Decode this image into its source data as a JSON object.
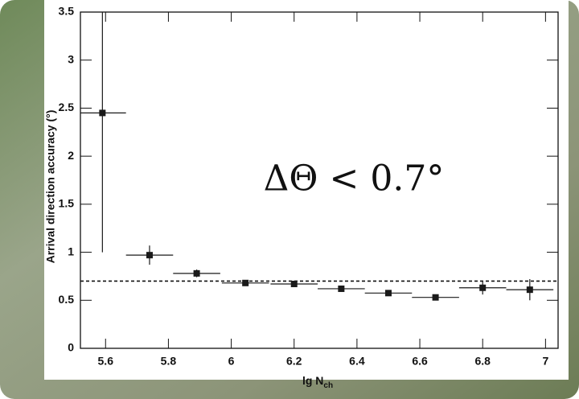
{
  "chart_data": {
    "type": "scatter",
    "x_label": "lg N",
    "x_label_sub": "ch",
    "y_label": "Arrival direction accuracy (°)",
    "annotation": "ΔΘ < 0.7°",
    "reference_line": 0.7,
    "xlim": [
      5.52,
      7.04
    ],
    "ylim": [
      0,
      3.5
    ],
    "xticks": [
      5.6,
      5.8,
      6,
      6.2,
      6.4,
      6.6,
      6.8,
      7
    ],
    "yticks": [
      0,
      0.5,
      1,
      1.5,
      2,
      2.5,
      3,
      3.5
    ],
    "series": [
      {
        "color": "#1a1a1a",
        "x": [
          5.59,
          5.74,
          5.89,
          6.045,
          6.2,
          6.35,
          6.5,
          6.65,
          6.8,
          6.95
        ],
        "values": [
          2.45,
          0.97,
          0.78,
          0.68,
          0.67,
          0.62,
          0.575,
          0.53,
          0.63,
          0.61
        ],
        "x_err": [
          0.075,
          0.075,
          0.075,
          0.075,
          0.075,
          0.075,
          0.075,
          0.075,
          0.075,
          0.075
        ],
        "y_err": [
          1.45,
          0.1,
          0.04,
          0.02,
          0.02,
          0.02,
          0.02,
          0.02,
          0.07,
          0.11
        ]
      }
    ]
  }
}
